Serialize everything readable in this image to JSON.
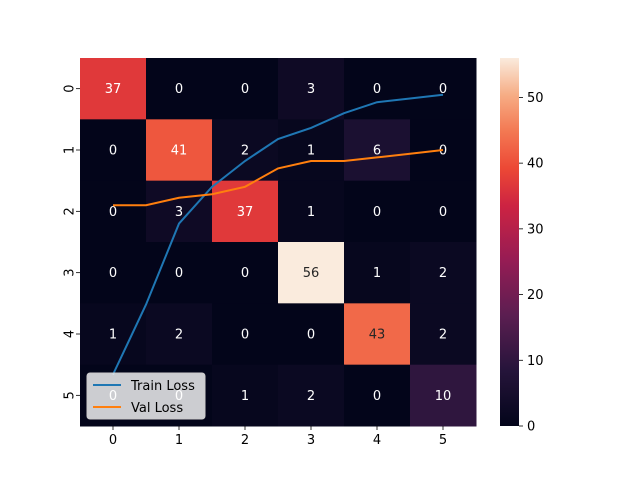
{
  "chart_data": {
    "type": "heatmap",
    "x_ticks": [
      "0",
      "1",
      "2",
      "3",
      "4",
      "5"
    ],
    "y_ticks": [
      "0",
      "1",
      "2",
      "3",
      "4",
      "5"
    ],
    "matrix": [
      [
        37,
        0,
        0,
        3,
        0,
        0
      ],
      [
        0,
        41,
        2,
        1,
        6,
        0
      ],
      [
        0,
        3,
        37,
        1,
        0,
        0
      ],
      [
        0,
        0,
        0,
        56,
        1,
        2
      ],
      [
        1,
        2,
        0,
        0,
        43,
        2
      ],
      [
        0,
        0,
        1,
        2,
        0,
        10
      ]
    ],
    "colorbar": {
      "min": 0,
      "max": 56,
      "ticks": [
        0,
        10,
        20,
        30,
        40,
        50
      ],
      "colormap": "rocket"
    },
    "legend_position": "lower-left",
    "overlay_lines": [
      {
        "name": "Train Loss",
        "color": "#1f77b4",
        "x": [
          0.5,
          1,
          1.5,
          2,
          2.5,
          3,
          3.5,
          4,
          4.5,
          5,
          5.5
        ],
        "y": [
          0.14,
          0.33,
          0.55,
          0.65,
          0.72,
          0.78,
          0.81,
          0.85,
          0.88,
          0.89,
          0.9
        ]
      },
      {
        "name": "Val Loss",
        "color": "#ff7f0e",
        "x": [
          0.5,
          1,
          1.5,
          2,
          2.5,
          3,
          3.5,
          4,
          4.5,
          5,
          5.5
        ],
        "y": [
          0.6,
          0.6,
          0.62,
          0.63,
          0.65,
          0.7,
          0.72,
          0.72,
          0.73,
          0.74,
          0.75
        ]
      }
    ]
  }
}
